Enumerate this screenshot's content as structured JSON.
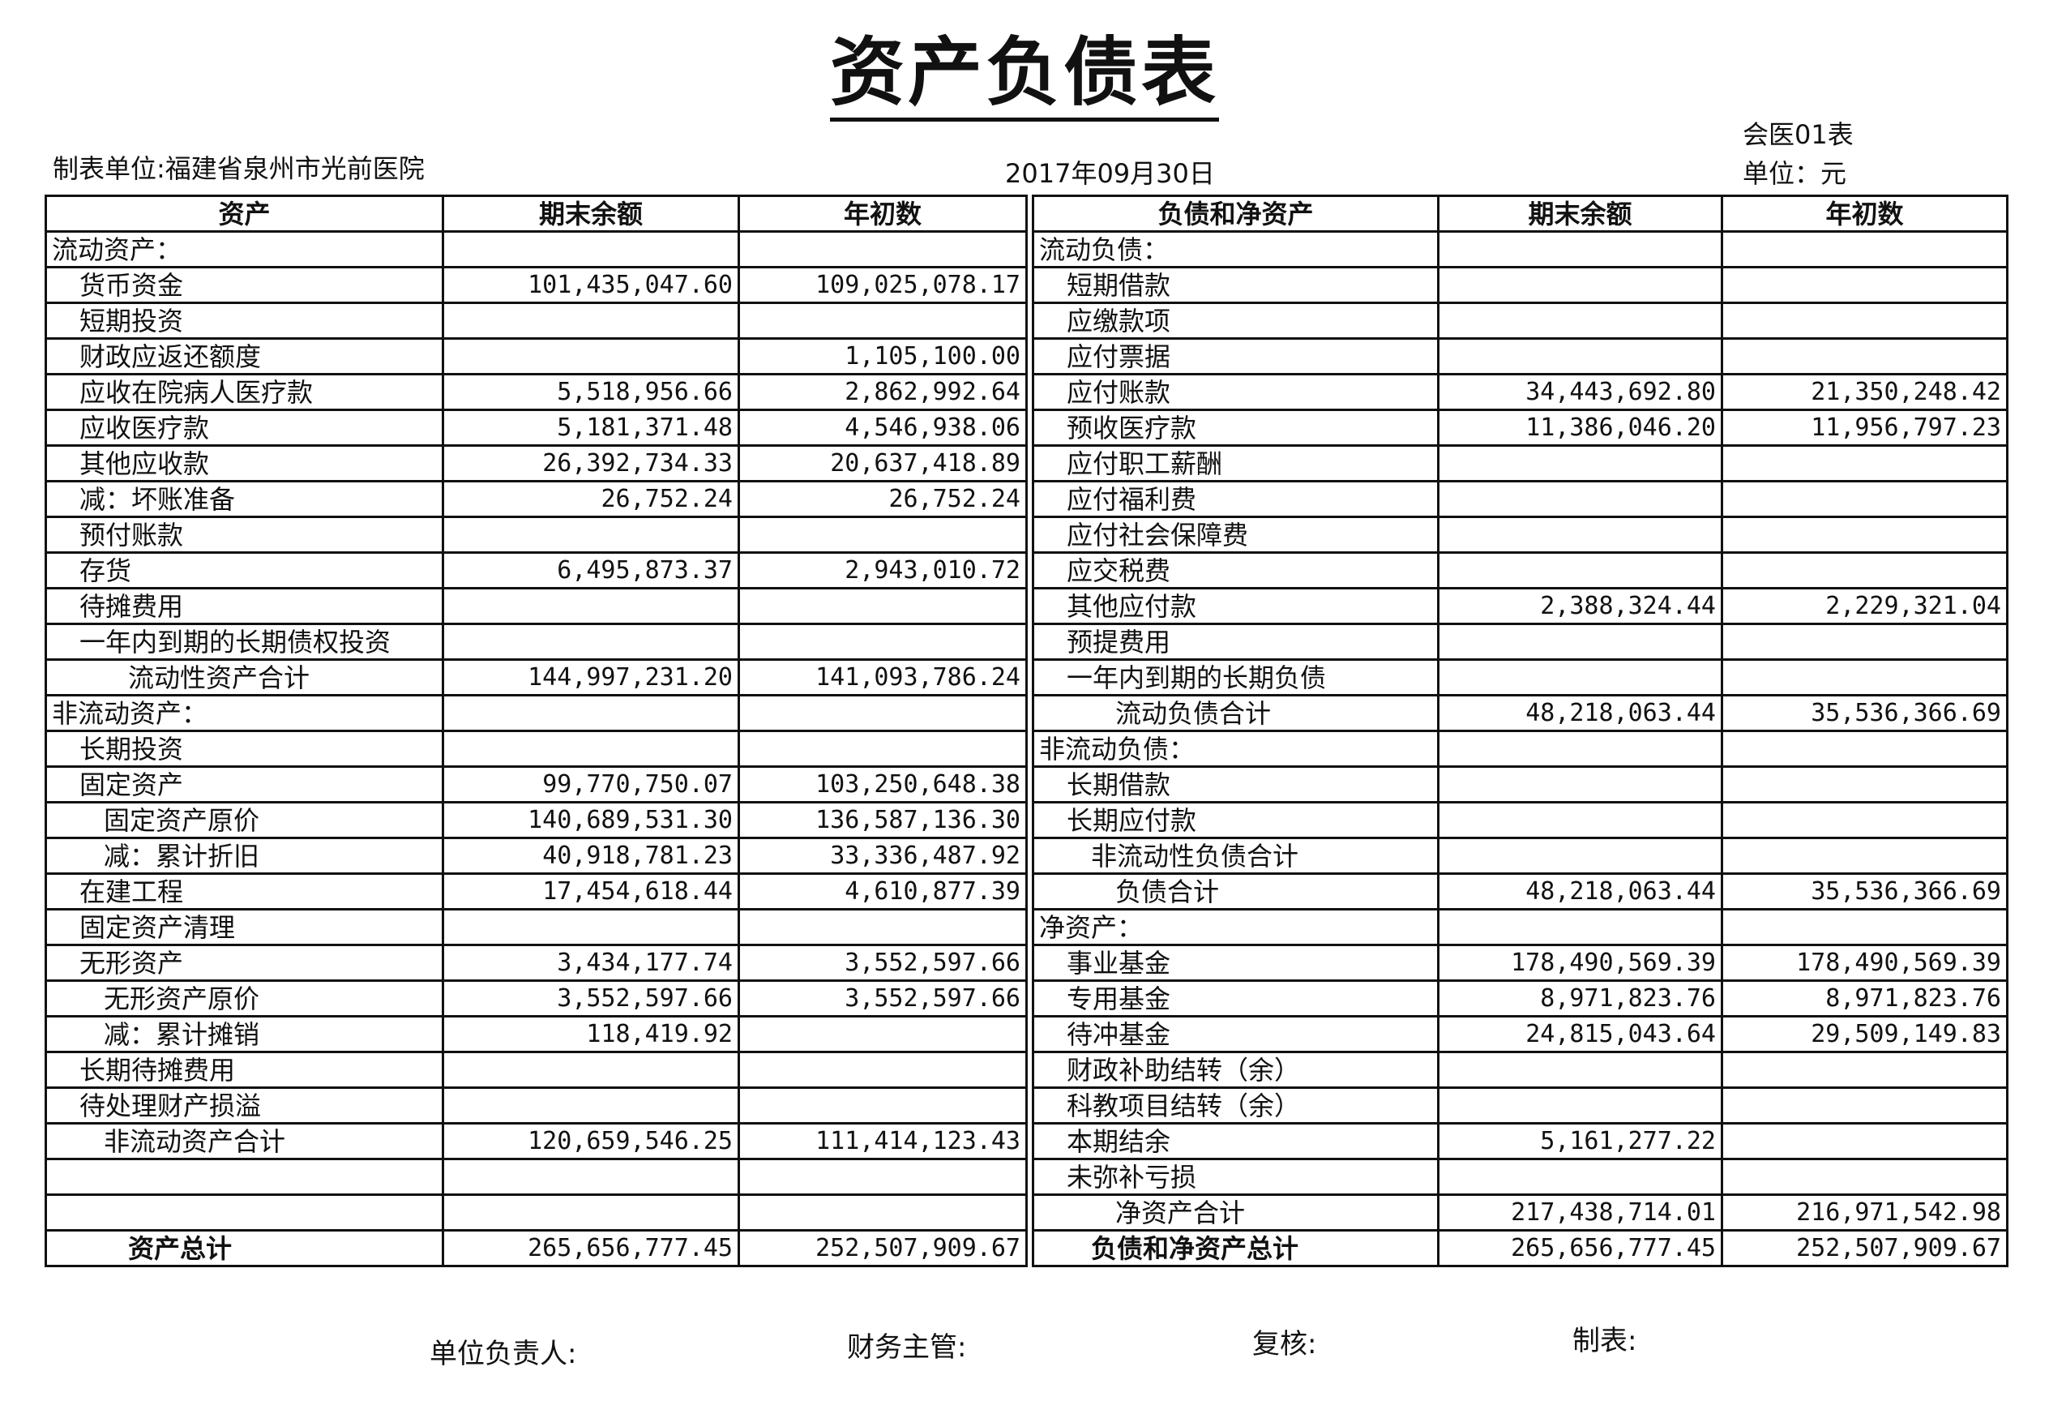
{
  "title": "资产负债表",
  "form_code": "会医01表",
  "unit_label": "制表单位:福建省泉州市光前医院",
  "date": "2017年09月30日",
  "currency_unit": "单位：元",
  "headers": {
    "assets": "资产",
    "end_balance": "期末余额",
    "begin_balance": "年初数",
    "liabilities": "负债和净资产",
    "end_balance_r": "期末余额",
    "begin_balance_r": "年初数"
  },
  "left_rows": [
    {
      "label": "流动资产：",
      "level": 0,
      "end": "",
      "begin": ""
    },
    {
      "label": "货币资金",
      "level": 1,
      "end": "101,435,047.60",
      "begin": "109,025,078.17"
    },
    {
      "label": "短期投资",
      "level": 1,
      "end": "",
      "begin": ""
    },
    {
      "label": "财政应返还额度",
      "level": 1,
      "end": "",
      "begin": "1,105,100.00"
    },
    {
      "label": "应收在院病人医疗款",
      "level": 1,
      "end": "5,518,956.66",
      "begin": "2,862,992.64"
    },
    {
      "label": "应收医疗款",
      "level": 1,
      "end": "5,181,371.48",
      "begin": "4,546,938.06"
    },
    {
      "label": "其他应收款",
      "level": 1,
      "end": "26,392,734.33",
      "begin": "20,637,418.89"
    },
    {
      "label": "减：坏账准备",
      "level": 1,
      "end": "26,752.24",
      "begin": "26,752.24"
    },
    {
      "label": "预付账款",
      "level": 1,
      "end": "",
      "begin": ""
    },
    {
      "label": "存货",
      "level": 1,
      "end": "6,495,873.37",
      "begin": "2,943,010.72"
    },
    {
      "label": "待摊费用",
      "level": 1,
      "end": "",
      "begin": ""
    },
    {
      "label": "一年内到期的长期债权投资",
      "level": 1,
      "end": "",
      "begin": ""
    },
    {
      "label": "流动性资产合计",
      "level": 3,
      "end": "144,997,231.20",
      "begin": "141,093,786.24"
    },
    {
      "label": "非流动资产：",
      "level": 0,
      "end": "",
      "begin": ""
    },
    {
      "label": "长期投资",
      "level": 1,
      "end": "",
      "begin": ""
    },
    {
      "label": "固定资产",
      "level": 1,
      "end": "99,770,750.07",
      "begin": "103,250,648.38"
    },
    {
      "label": "固定资产原价",
      "level": 2,
      "end": "140,689,531.30",
      "begin": "136,587,136.30"
    },
    {
      "label": "减：累计折旧",
      "level": 2,
      "end": "40,918,781.23",
      "begin": "33,336,487.92"
    },
    {
      "label": "在建工程",
      "level": 1,
      "end": "17,454,618.44",
      "begin": "4,610,877.39"
    },
    {
      "label": "固定资产清理",
      "level": 1,
      "end": "",
      "begin": ""
    },
    {
      "label": "无形资产",
      "level": 1,
      "end": "3,434,177.74",
      "begin": "3,552,597.66"
    },
    {
      "label": "无形资产原价",
      "level": 2,
      "end": "3,552,597.66",
      "begin": "3,552,597.66"
    },
    {
      "label": "减：累计摊销",
      "level": 2,
      "end": "118,419.92",
      "begin": ""
    },
    {
      "label": "长期待摊费用",
      "level": 1,
      "end": "",
      "begin": ""
    },
    {
      "label": "待处理财产损溢",
      "level": 1,
      "end": "",
      "begin": ""
    },
    {
      "label": "非流动资产合计",
      "level": 2,
      "end": "120,659,546.25",
      "begin": "111,414,123.43"
    },
    {
      "label": "",
      "level": 1,
      "end": "",
      "begin": ""
    },
    {
      "label": "",
      "level": 1,
      "end": "",
      "begin": ""
    },
    {
      "label": "资产总计",
      "level": 3,
      "bold": true,
      "end": "265,656,777.45",
      "begin": "252,507,909.67"
    }
  ],
  "right_rows": [
    {
      "label": "流动负债：",
      "level": 0,
      "end": "",
      "begin": ""
    },
    {
      "label": "短期借款",
      "level": 1,
      "end": "",
      "begin": ""
    },
    {
      "label": "应缴款项",
      "level": 1,
      "end": "",
      "begin": ""
    },
    {
      "label": "应付票据",
      "level": 1,
      "end": "",
      "begin": ""
    },
    {
      "label": "应付账款",
      "level": 1,
      "end": "34,443,692.80",
      "begin": "21,350,248.42"
    },
    {
      "label": "预收医疗款",
      "level": 1,
      "end": "11,386,046.20",
      "begin": "11,956,797.23"
    },
    {
      "label": "应付职工薪酬",
      "level": 1,
      "end": "",
      "begin": ""
    },
    {
      "label": "应付福利费",
      "level": 1,
      "end": "",
      "begin": ""
    },
    {
      "label": "应付社会保障费",
      "level": 1,
      "end": "",
      "begin": ""
    },
    {
      "label": "应交税费",
      "level": 1,
      "end": "",
      "begin": ""
    },
    {
      "label": "其他应付款",
      "level": 1,
      "end": "2,388,324.44",
      "begin": "2,229,321.04"
    },
    {
      "label": "预提费用",
      "level": 1,
      "end": "",
      "begin": ""
    },
    {
      "label": "一年内到期的长期负债",
      "level": 1,
      "end": "",
      "begin": ""
    },
    {
      "label": "流动负债合计",
      "level": 3,
      "end": "48,218,063.44",
      "begin": "35,536,366.69"
    },
    {
      "label": "非流动负债：",
      "level": 0,
      "end": "",
      "begin": ""
    },
    {
      "label": "长期借款",
      "level": 1,
      "end": "",
      "begin": ""
    },
    {
      "label": "长期应付款",
      "level": 1,
      "end": "",
      "begin": ""
    },
    {
      "label": "非流动性负债合计",
      "level": 2,
      "end": "",
      "begin": ""
    },
    {
      "label": "负债合计",
      "level": 3,
      "end": "48,218,063.44",
      "begin": "35,536,366.69"
    },
    {
      "label": "净资产：",
      "level": 0,
      "end": "",
      "begin": ""
    },
    {
      "label": "事业基金",
      "level": 1,
      "end": "178,490,569.39",
      "begin": "178,490,569.39"
    },
    {
      "label": "专用基金",
      "level": 1,
      "end": "8,971,823.76",
      "begin": "8,971,823.76"
    },
    {
      "label": "待冲基金",
      "level": 1,
      "end": "24,815,043.64",
      "begin": "29,509,149.83"
    },
    {
      "label": "财政补助结转（余）",
      "level": 1,
      "end": "",
      "begin": ""
    },
    {
      "label": "科教项目结转（余）",
      "level": 1,
      "end": "",
      "begin": ""
    },
    {
      "label": "本期结余",
      "level": 1,
      "end": "5,161,277.22",
      "begin": ""
    },
    {
      "label": "未弥补亏损",
      "level": 1,
      "end": "",
      "begin": ""
    },
    {
      "label": "净资产合计",
      "level": 3,
      "end": "217,438,714.01",
      "begin": "216,971,542.98"
    },
    {
      "label": "负债和净资产总计",
      "level": 2,
      "bold": true,
      "end": "265,656,777.45",
      "begin": "252,507,909.67"
    }
  ],
  "signatures": {
    "head": "单位负责人:",
    "finance": "财务主管:",
    "review": "复核:",
    "preparer": "制表:"
  }
}
